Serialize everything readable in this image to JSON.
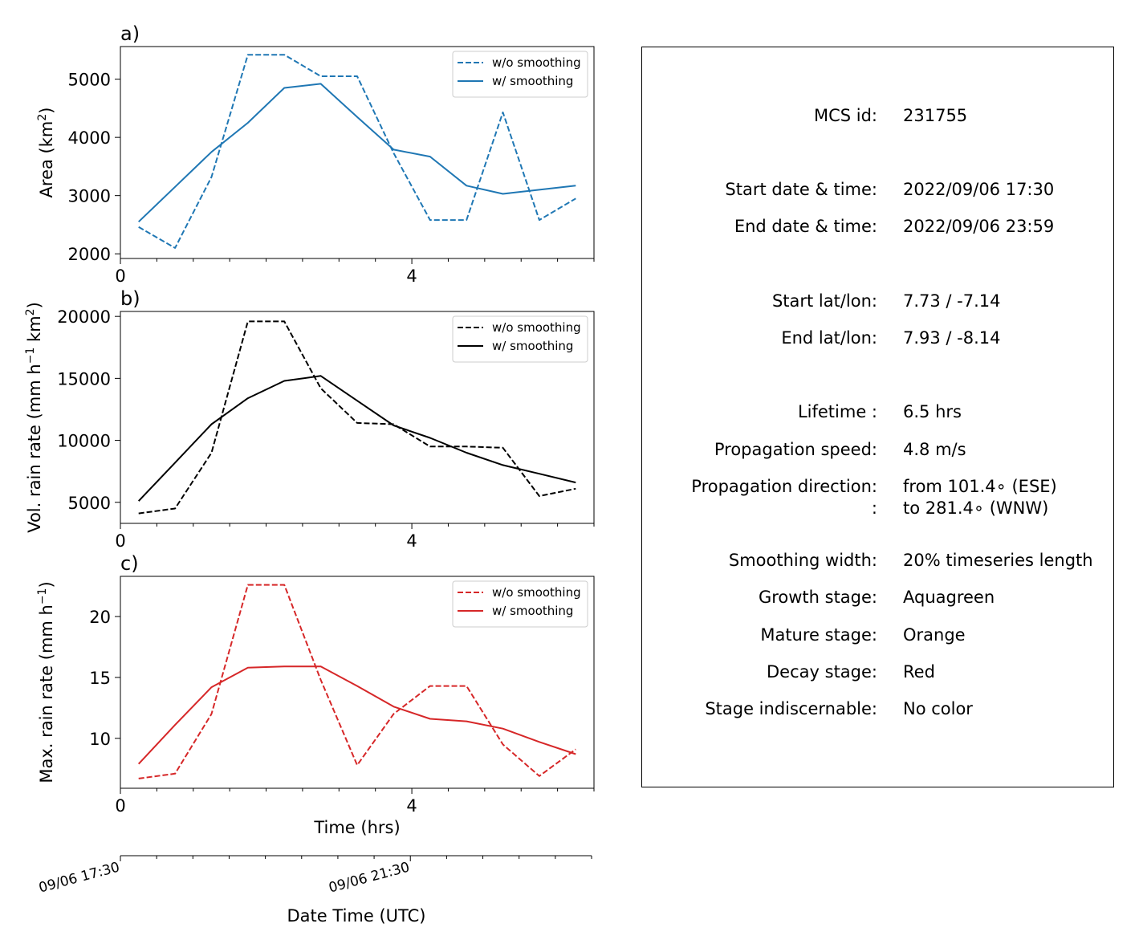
{
  "chart_data": [
    {
      "type": "line",
      "panel_label": "a)",
      "xlabel": "",
      "ylabel": "Area  (km2)",
      "xlim": [
        0,
        6.5
      ],
      "ylim": [
        1920,
        5560
      ],
      "xticks": [
        0,
        4
      ],
      "yticks": [
        2000,
        3000,
        4000,
        5000
      ],
      "x": [
        0.25,
        0.75,
        1.25,
        1.75,
        2.25,
        2.75,
        3.25,
        3.75,
        4.25,
        4.75,
        5.25,
        5.75,
        6.25
      ],
      "series": [
        {
          "name": "w/o smoothing",
          "style": "dashed",
          "color": "#1f77b4",
          "values": [
            2460,
            2100,
            3320,
            5420,
            5420,
            5050,
            5050,
            3730,
            2580,
            2580,
            4430,
            2580,
            2950
          ]
        },
        {
          "name": "w/ smoothing",
          "style": "solid",
          "color": "#1f77b4",
          "values": [
            2550,
            3150,
            3750,
            4250,
            4850,
            4920,
            4350,
            3790,
            3670,
            3170,
            3030,
            3100,
            3170
          ]
        }
      ],
      "legend": "upper right",
      "grid": false
    },
    {
      "type": "line",
      "panel_label": "b)",
      "xlabel": "",
      "ylabel": "Vol. rain rate (mm h−1 km2)",
      "xlim": [
        0,
        6.5
      ],
      "ylim": [
        3300,
        20400
      ],
      "xticks": [
        0,
        4
      ],
      "yticks": [
        5000,
        10000,
        15000,
        20000
      ],
      "x": [
        0.25,
        0.75,
        1.25,
        1.75,
        2.25,
        2.75,
        3.25,
        3.75,
        4.25,
        4.75,
        5.25,
        5.75,
        6.25
      ],
      "series": [
        {
          "name": "w/o smoothing",
          "style": "dashed",
          "color": "#000000",
          "values": [
            4100,
            4500,
            9000,
            19600,
            19600,
            14200,
            11400,
            11300,
            9500,
            9500,
            9400,
            5500,
            6100
          ]
        },
        {
          "name": "w/ smoothing",
          "style": "solid",
          "color": "#000000",
          "values": [
            5100,
            8200,
            11300,
            13400,
            14800,
            15200,
            13200,
            11200,
            10200,
            9000,
            8000,
            7300,
            6600
          ]
        }
      ],
      "legend": "upper right",
      "grid": false
    },
    {
      "type": "line",
      "panel_label": "c)",
      "xlabel": "Time (hrs)",
      "ylabel": "Max. rain rate  (mm h−1)",
      "xlim": [
        0,
        6.5
      ],
      "ylim": [
        5.9,
        23.3
      ],
      "xticks": [
        0,
        4
      ],
      "yticks": [
        10,
        15,
        20
      ],
      "x": [
        0.25,
        0.75,
        1.25,
        1.75,
        2.25,
        2.75,
        3.25,
        3.75,
        4.25,
        4.75,
        5.25,
        5.75,
        6.25
      ],
      "series": [
        {
          "name": "w/o smoothing",
          "style": "dashed",
          "color": "#d62728",
          "values": [
            6.7,
            7.1,
            12.0,
            22.6,
            22.6,
            14.8,
            7.8,
            12.0,
            14.3,
            14.3,
            9.5,
            6.9,
            9.1
          ]
        },
        {
          "name": "w/ smoothing",
          "style": "solid",
          "color": "#d62728",
          "values": [
            7.9,
            11.1,
            14.2,
            15.8,
            15.9,
            15.9,
            14.3,
            12.6,
            11.6,
            11.4,
            10.8,
            9.7,
            8.7
          ]
        }
      ],
      "legend": "upper right",
      "grid": false
    }
  ],
  "date_axis": {
    "xlabel": "Date Time (UTC)",
    "tick_labels": [
      "09/06 17:30",
      "09/06 21:30"
    ],
    "tick_hours": [
      0,
      4
    ]
  },
  "info": {
    "rows": [
      {
        "label": "MCS id:",
        "value": "231755"
      },
      {
        "label": "Start date & time:",
        "value": "2022/09/06 17:30"
      },
      {
        "label": "End date & time:",
        "value": "2022/09/06 23:59"
      },
      {
        "label": "Start lat/lon:",
        "value": "7.73 / -7.14"
      },
      {
        "label": "End lat/lon:",
        "value": "7.93 / -8.14"
      },
      {
        "label": "Lifetime :",
        "value": "6.5 hrs"
      },
      {
        "label": "Propagation speed:",
        "value": "4.8 m/s"
      },
      {
        "label": "Propagation direction:",
        "value": "from 101.4∘ (ESE)"
      },
      {
        "label": ":",
        "value": "to   281.4∘ (WNW)"
      },
      {
        "label": "Smoothing width:",
        "value": "20% timeseries length"
      },
      {
        "label": "Growth stage:",
        "value": "Aquagreen"
      },
      {
        "label": "Mature stage:",
        "value": "Orange"
      },
      {
        "label": "Decay stage:",
        "value": "Red"
      },
      {
        "label": "Stage indiscernable:",
        "value": "No color"
      }
    ]
  }
}
